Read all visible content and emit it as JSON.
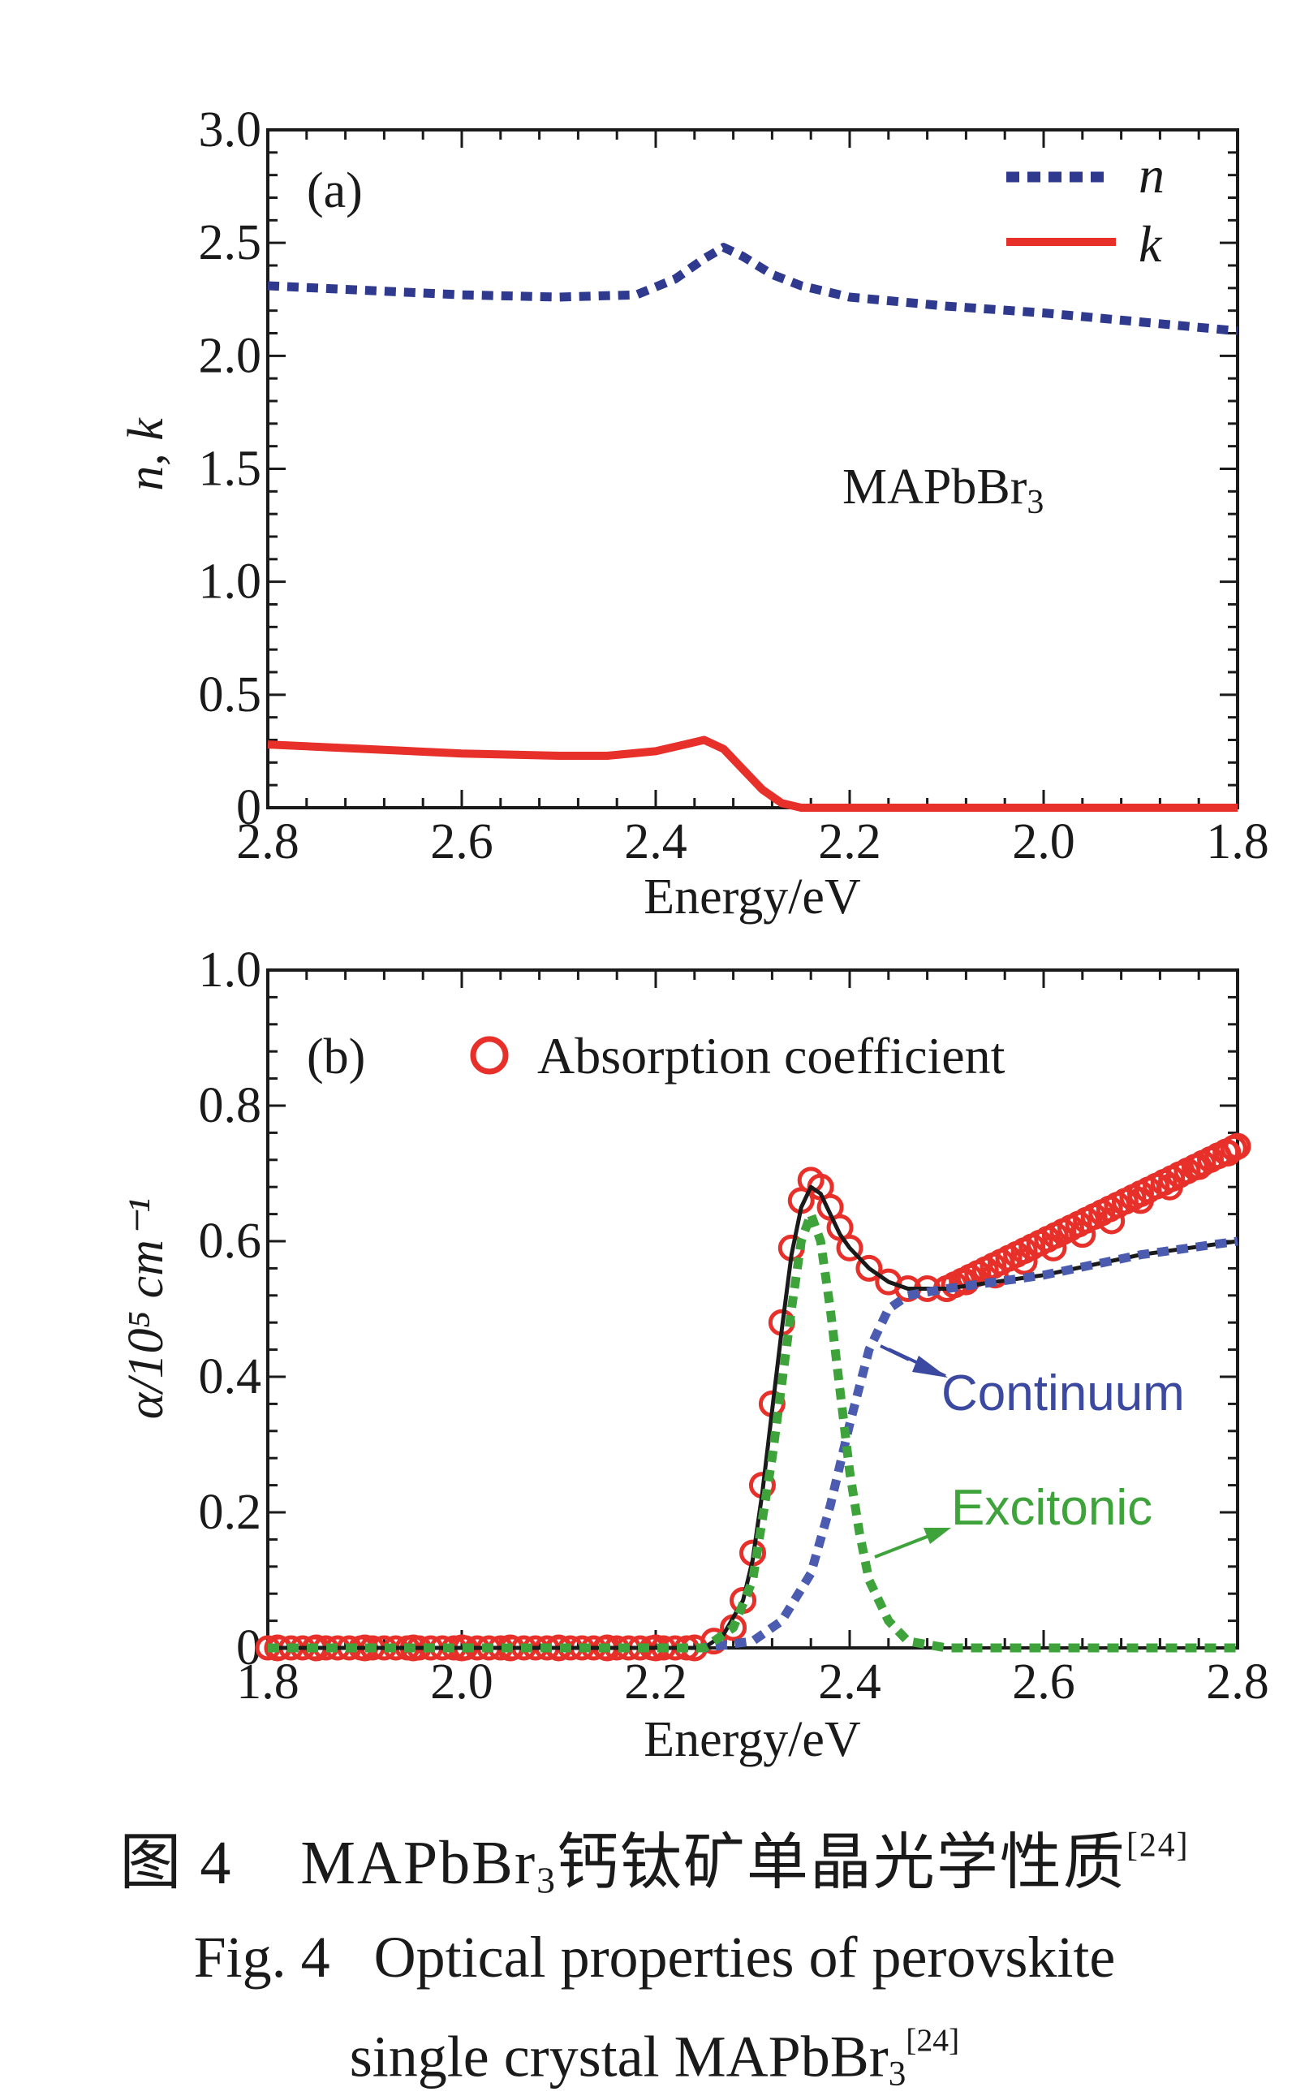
{
  "chart_data": [
    {
      "type": "line",
      "panel_label": "(a)",
      "xlabel": "Energy/eV",
      "ylabel": "n, k",
      "xlim": [
        2.8,
        1.8
      ],
      "x_reversed": true,
      "ylim": [
        0,
        3.0
      ],
      "x_ticks": [
        2.8,
        2.6,
        2.4,
        2.2,
        2.0,
        1.8
      ],
      "x_tick_labels": [
        "2.8",
        "2.6",
        "2.4",
        "2.2",
        "2.0",
        "1.8"
      ],
      "y_ticks": [
        0,
        0.5,
        1.0,
        1.5,
        2.0,
        2.5,
        3.0
      ],
      "y_tick_labels": [
        "0",
        "0.5",
        "1.0",
        "1.5",
        "2.0",
        "2.5",
        "3.0"
      ],
      "annotation": {
        "text": "MAPbBr",
        "sub": "3"
      },
      "legend_position": "top-right",
      "series": [
        {
          "name": "n",
          "style": "dashed",
          "color": "#2f3a8f",
          "x": [
            2.8,
            2.7,
            2.6,
            2.5,
            2.42,
            2.38,
            2.35,
            2.33,
            2.31,
            2.28,
            2.25,
            2.2,
            2.1,
            2.0,
            1.9,
            1.8
          ],
          "y": [
            2.31,
            2.29,
            2.27,
            2.26,
            2.27,
            2.34,
            2.43,
            2.48,
            2.44,
            2.36,
            2.31,
            2.26,
            2.22,
            2.19,
            2.15,
            2.11
          ]
        },
        {
          "name": "k",
          "style": "solid",
          "color": "#e8302a",
          "x": [
            2.8,
            2.7,
            2.6,
            2.5,
            2.45,
            2.4,
            2.37,
            2.35,
            2.33,
            2.31,
            2.29,
            2.27,
            2.25,
            2.2,
            2.1,
            2.0,
            1.9,
            1.8
          ],
          "y": [
            0.28,
            0.26,
            0.24,
            0.23,
            0.23,
            0.25,
            0.28,
            0.3,
            0.26,
            0.17,
            0.08,
            0.02,
            0.0,
            0.0,
            0.0,
            0.0,
            0.0,
            0.0
          ]
        }
      ]
    },
    {
      "type": "line",
      "panel_label": "(b)",
      "xlabel": "Energy/eV",
      "ylabel": "α/10⁵ cm⁻¹",
      "xlim": [
        1.8,
        2.8
      ],
      "ylim": [
        0,
        1.0
      ],
      "x_ticks": [
        1.8,
        2.0,
        2.2,
        2.4,
        2.6,
        2.8
      ],
      "x_tick_labels": [
        "1.8",
        "2.0",
        "2.2",
        "2.4",
        "2.6",
        "2.8"
      ],
      "y_ticks": [
        0,
        0.2,
        0.4,
        0.6,
        0.8,
        1.0
      ],
      "y_tick_labels": [
        "0",
        "0.2",
        "0.4",
        "0.6",
        "0.8",
        "1.0"
      ],
      "legend_position": "top",
      "annotations": [
        {
          "text": "Continuum",
          "color": "#3b4aa0",
          "arrow_to": [
            2.44,
            0.46
          ]
        },
        {
          "text": "Excitonic",
          "color": "#3ea33a",
          "arrow_to": [
            2.42,
            0.12
          ]
        }
      ],
      "series": [
        {
          "name": "Absorption coefficient",
          "style": "markers",
          "marker": "open-circle",
          "color": "#e8302a",
          "x": [
            1.81,
            1.85,
            1.9,
            1.95,
            2.0,
            2.05,
            2.1,
            2.15,
            2.2,
            2.24,
            2.26,
            2.28,
            2.29,
            2.3,
            2.31,
            2.32,
            2.33,
            2.34,
            2.35,
            2.36,
            2.37,
            2.38,
            2.39,
            2.4,
            2.42,
            2.44,
            2.46,
            2.48,
            2.5,
            2.52,
            2.55,
            2.58,
            2.61,
            2.64,
            2.67,
            2.7,
            2.73,
            2.76,
            2.79,
            2.8
          ],
          "y": [
            0.0,
            0.0,
            0.0,
            0.0,
            0.0,
            0.0,
            0.0,
            0.0,
            0.0,
            0.0,
            0.01,
            0.03,
            0.07,
            0.14,
            0.24,
            0.36,
            0.48,
            0.59,
            0.66,
            0.69,
            0.68,
            0.65,
            0.62,
            0.59,
            0.56,
            0.54,
            0.53,
            0.53,
            0.53,
            0.54,
            0.55,
            0.57,
            0.59,
            0.61,
            0.63,
            0.66,
            0.68,
            0.71,
            0.73,
            0.74
          ]
        },
        {
          "name": "",
          "style": "solid",
          "color": "#1a1a1a",
          "x": [
            1.8,
            2.2,
            2.25,
            2.27,
            2.29,
            2.3,
            2.31,
            2.32,
            2.33,
            2.34,
            2.35,
            2.36,
            2.37,
            2.38,
            2.39,
            2.4,
            2.42,
            2.44,
            2.46,
            2.5,
            2.6,
            2.7,
            2.8
          ],
          "y": [
            0.0,
            0.0,
            0.0,
            0.02,
            0.07,
            0.13,
            0.23,
            0.35,
            0.47,
            0.58,
            0.65,
            0.68,
            0.67,
            0.64,
            0.61,
            0.59,
            0.56,
            0.54,
            0.53,
            0.53,
            0.55,
            0.58,
            0.6
          ]
        },
        {
          "name": "",
          "style": "dashed",
          "color": "#4a5bb0",
          "x": [
            1.8,
            2.25,
            2.3,
            2.33,
            2.36,
            2.38,
            2.4,
            2.42,
            2.44,
            2.46,
            2.5,
            2.6,
            2.7,
            2.8
          ],
          "y": [
            0.0,
            0.0,
            0.01,
            0.04,
            0.11,
            0.21,
            0.33,
            0.44,
            0.5,
            0.52,
            0.53,
            0.55,
            0.58,
            0.6
          ]
        },
        {
          "name": "",
          "style": "dashed",
          "color": "#3ea33a",
          "x": [
            1.8,
            2.25,
            2.28,
            2.3,
            2.32,
            2.34,
            2.35,
            2.36,
            2.37,
            2.38,
            2.39,
            2.4,
            2.41,
            2.42,
            2.44,
            2.46,
            2.5,
            2.6,
            2.8
          ],
          "y": [
            0.0,
            0.0,
            0.03,
            0.1,
            0.28,
            0.5,
            0.6,
            0.64,
            0.6,
            0.5,
            0.38,
            0.26,
            0.17,
            0.1,
            0.04,
            0.01,
            0.0,
            0.0,
            0.0
          ]
        }
      ]
    }
  ],
  "caption": {
    "cn_fig": "图 4",
    "cn_formula": "MAPbBr",
    "cn_sub": "3",
    "cn_text": "钙钛矿单晶光学性质",
    "ref": "[24]",
    "en_line1": "Fig. 4   Optical properties of perovskite",
    "en_line2": "single crystal MAPbBr",
    "en_sub": "3"
  }
}
